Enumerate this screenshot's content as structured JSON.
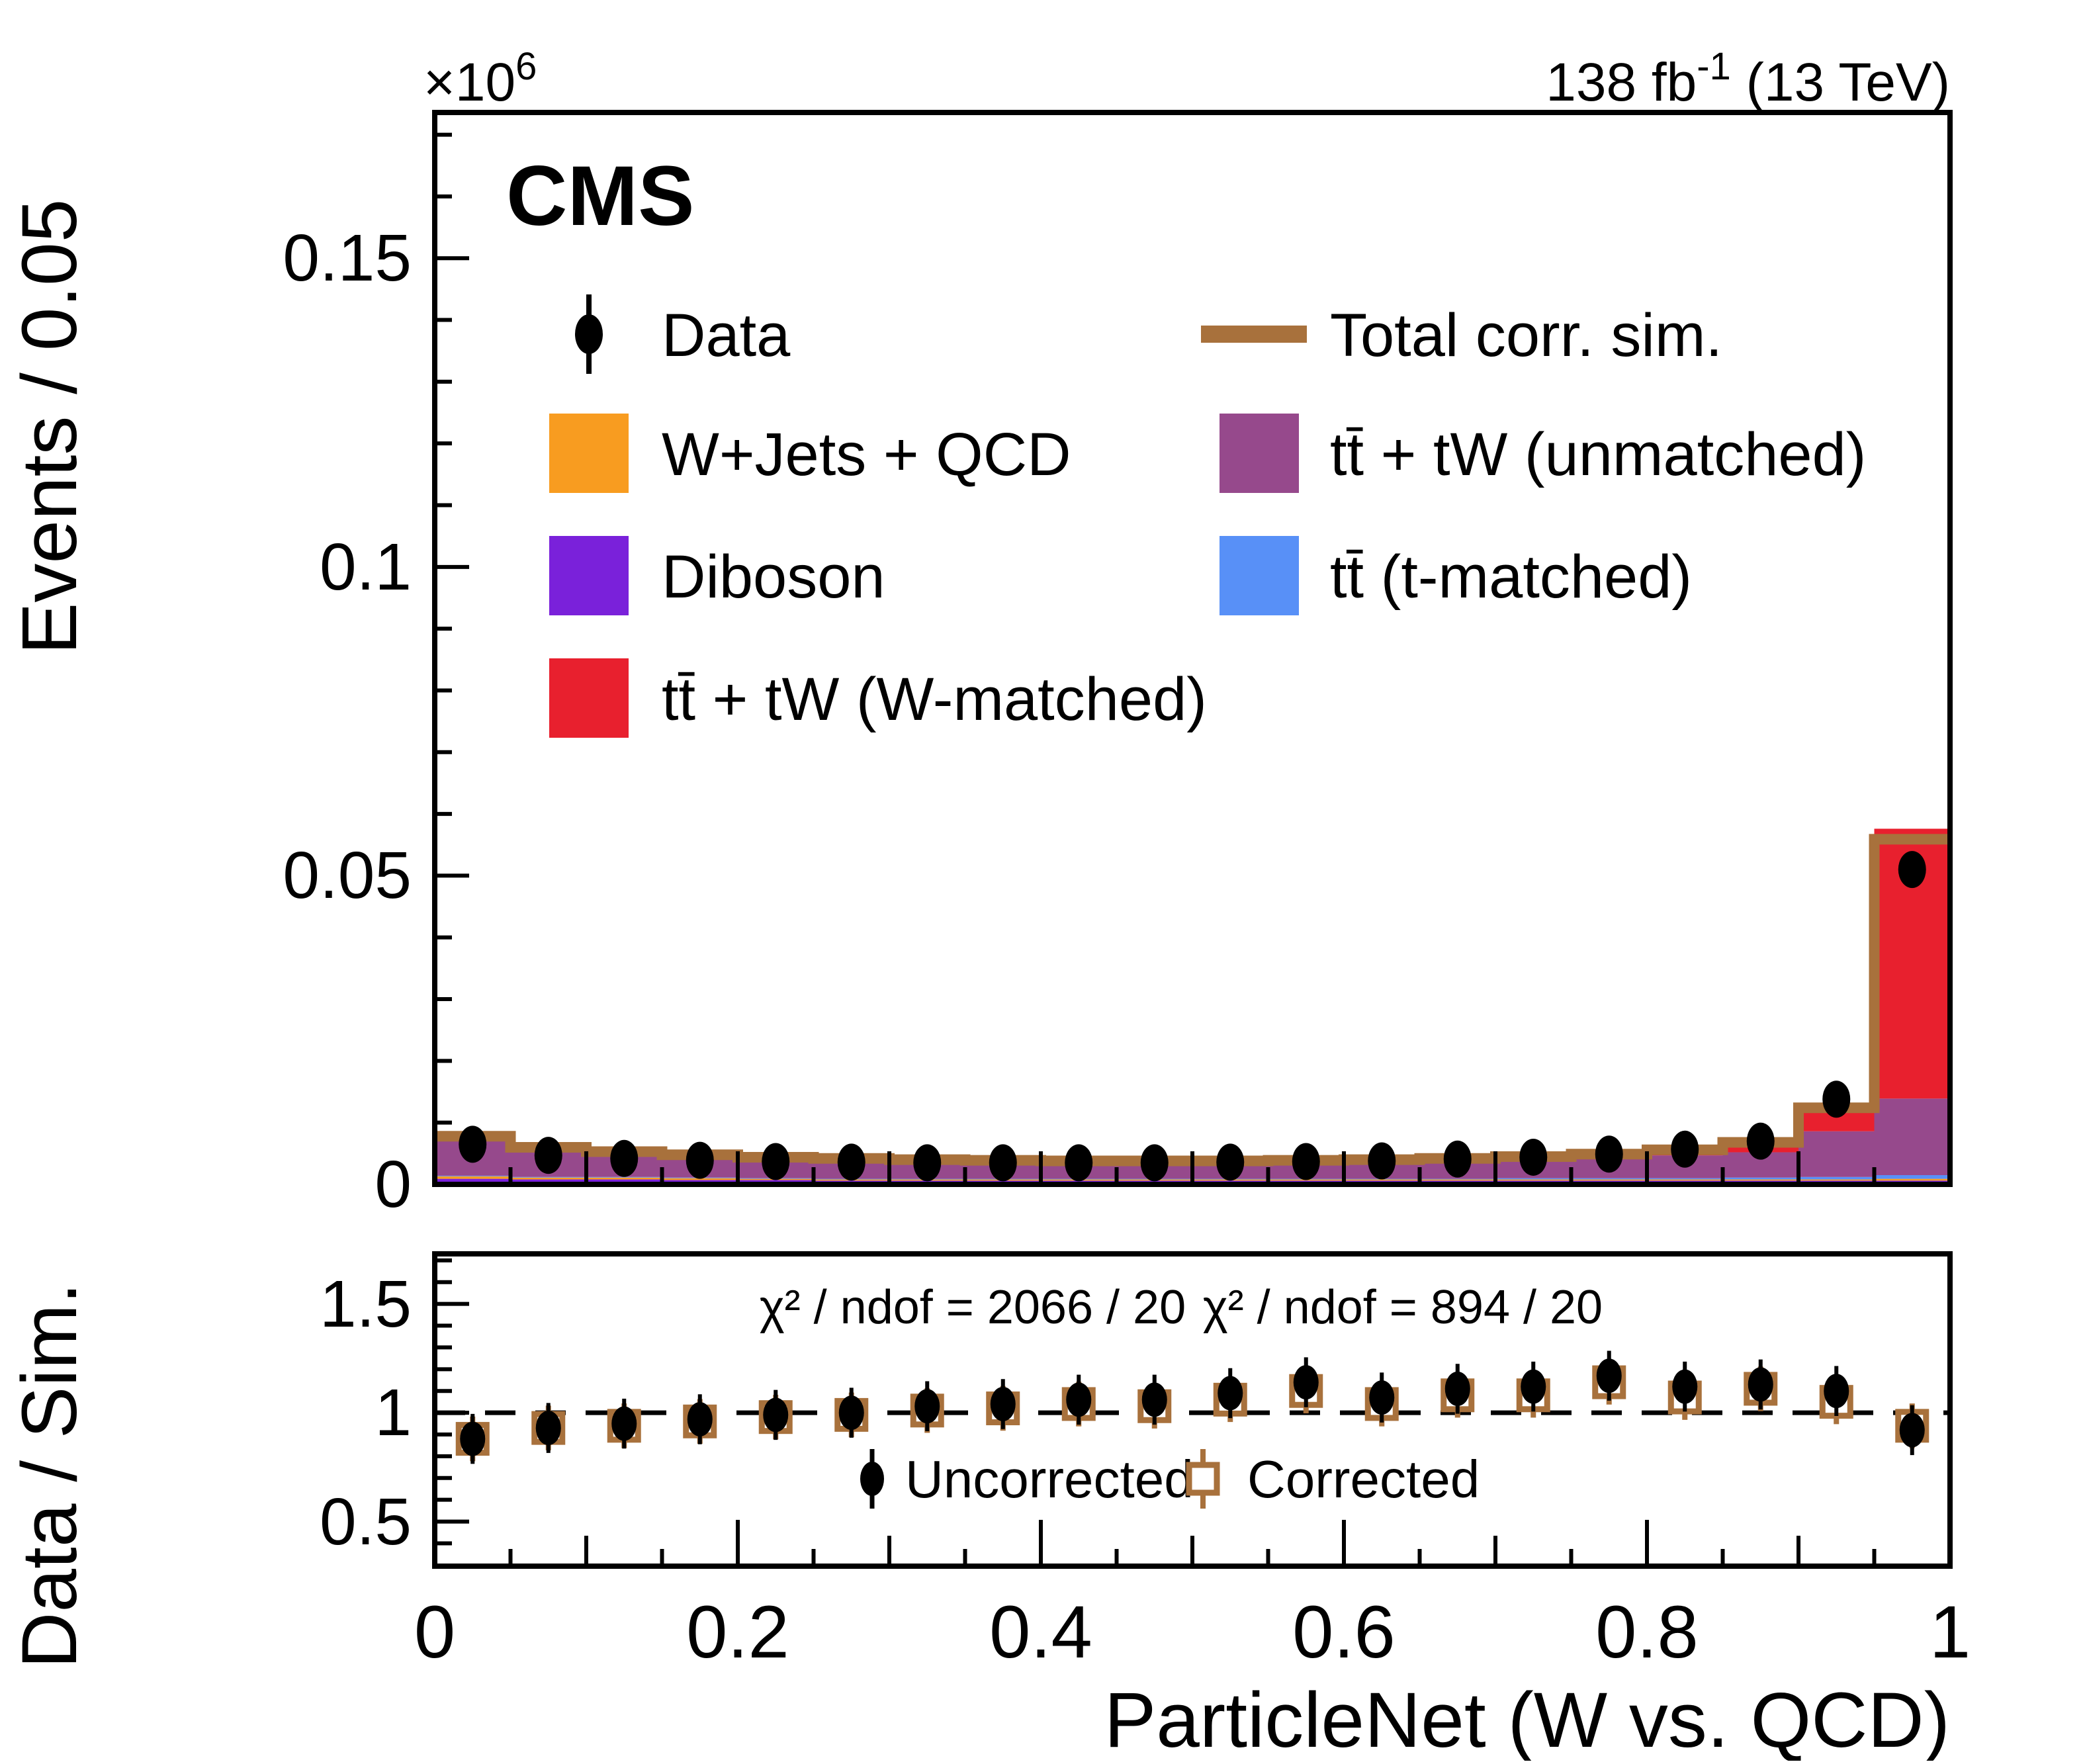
{
  "header": {
    "cms": "CMS",
    "lumi_prefix": "138 fb",
    "lumi_sup": "-1",
    "lumi_suffix": " (13 TeV)"
  },
  "main_axis": {
    "ylabel": "Events / 0.05",
    "exp_prefix": "×10",
    "exp_sup": "6",
    "yticks": [
      "0",
      "0.05",
      "0.1",
      "0.15"
    ]
  },
  "xaxis": {
    "title": "ParticleNet (W vs. QCD)",
    "ticks": [
      "0",
      "0.2",
      "0.4",
      "0.6",
      "0.8",
      "1"
    ]
  },
  "legend": {
    "data": "Data",
    "wjets": "W+Jets + QCD",
    "diboson": "Diboson",
    "wmatched": "tt̄ + tW (W-matched)",
    "total_corr": "Total corr. sim.",
    "unmatched": "tt̄ + tW (unmatched)",
    "tmatched": "tt̄ (t-matched)"
  },
  "ratio_panel": {
    "ylabel": "Data / Sim.",
    "yticks": [
      "0.5",
      "1",
      "1.5"
    ],
    "chi2_uncorrected": "χ² / ndof = 2066 / 20",
    "chi2_corrected": "χ² / ndof = 894 / 20",
    "legend_uncorrected": "Uncorrected",
    "legend_corrected": "Corrected"
  },
  "colors": {
    "wjets": "#F89C20",
    "diboson": "#7A21DA",
    "wmatched": "#E8202E",
    "unmatched": "#96498C",
    "tmatched": "#5890F7",
    "total_corr": "#A8713C",
    "data": "#000000"
  },
  "chart_data": {
    "type": "bar",
    "stacked": true,
    "title": "CMS, 138 fb-1 (13 TeV)",
    "xlabel": "ParticleNet (W vs. QCD)",
    "ylabel": "Events / 0.05 (×10⁶)",
    "n_bins": 20,
    "bin_width": 0.05,
    "x_range": [
      0,
      1
    ],
    "ylim": [
      0,
      0.1736
    ],
    "ratio_ylim": [
      0.295,
      1.73
    ],
    "legend_position": "top-inside",
    "grid": false,
    "series": [
      {
        "name": "Diboson",
        "color_key": "diboson",
        "values": [
          0.0009,
          0.0008,
          0.0008,
          0.0007,
          0.0007,
          0.0006,
          0.0006,
          0.0006,
          0.0006,
          0.0006,
          0.0006,
          0.0006,
          0.0006,
          0.0006,
          0.0006,
          0.0006,
          0.0006,
          0.0006,
          0.0006,
          0.0006
        ]
      },
      {
        "name": "W+Jets + QCD",
        "color_key": "wjets",
        "values": [
          0.0004,
          0.0003,
          0.0003,
          0.0003,
          0.0002,
          0.0002,
          0.0002,
          0.0002,
          0.0002,
          0.0002,
          0.0002,
          0.0002,
          0.0002,
          0.0002,
          0.0002,
          0.0002,
          0.0002,
          0.0002,
          0.0002,
          0.0003
        ]
      },
      {
        "name": "tt̄ (t-matched)",
        "color_key": "tmatched",
        "values": [
          0.0001,
          0.0001,
          0.0001,
          0.0001,
          0.0001,
          0.0001,
          0.0001,
          0.0001,
          0.0001,
          0.0001,
          0.0001,
          0.0001,
          0.0001,
          0.0001,
          0.0002,
          0.0002,
          0.0002,
          0.0003,
          0.0004,
          0.0006
        ]
      },
      {
        "name": "tt̄ + tW (unmatched)",
        "color_key": "unmatched",
        "values": [
          0.0063,
          0.0047,
          0.004,
          0.0036,
          0.0033,
          0.0032,
          0.003,
          0.0029,
          0.0028,
          0.0028,
          0.0028,
          0.0028,
          0.0029,
          0.003,
          0.0031,
          0.0033,
          0.0037,
          0.0041,
          0.0074,
          0.0124
        ]
      },
      {
        "name": "tt̄ + tW (W-matched)",
        "color_key": "wmatched",
        "values": [
          0.0001,
          0.0001,
          0.0001,
          0.0001,
          0.0001,
          0.0001,
          0.0001,
          0.0001,
          0.0001,
          0.0001,
          0.0001,
          0.0002,
          0.0002,
          0.0003,
          0.0004,
          0.0006,
          0.0009,
          0.0016,
          0.0045,
          0.0437
        ]
      }
    ],
    "total_corrected_sim": {
      "name": "Total corr. sim.",
      "color_key": "total_corr",
      "values": [
        0.0078,
        0.006,
        0.0053,
        0.0048,
        0.0044,
        0.0042,
        0.004,
        0.0039,
        0.0038,
        0.0038,
        0.0038,
        0.0039,
        0.004,
        0.0042,
        0.0045,
        0.0049,
        0.0056,
        0.0068,
        0.0124,
        0.0559
      ]
    },
    "data_points": {
      "name": "Data",
      "values": [
        0.0065,
        0.0047,
        0.0042,
        0.0039,
        0.0037,
        0.0036,
        0.0035,
        0.0035,
        0.0035,
        0.0035,
        0.0036,
        0.0037,
        0.0038,
        0.0041,
        0.0044,
        0.0049,
        0.0057,
        0.007,
        0.0138,
        0.051
      ],
      "y_error": 0.00025
    },
    "ratio": {
      "ref_line": 1,
      "uncorrected": [
        0.88,
        0.93,
        0.95,
        0.97,
        0.99,
        1.0,
        1.03,
        1.04,
        1.06,
        1.06,
        1.09,
        1.14,
        1.07,
        1.11,
        1.12,
        1.17,
        1.12,
        1.13,
        1.1,
        0.92
      ],
      "corrected": [
        0.88,
        0.93,
        0.94,
        0.96,
        0.98,
        0.99,
        1.01,
        1.02,
        1.04,
        1.03,
        1.06,
        1.1,
        1.04,
        1.08,
        1.08,
        1.14,
        1.07,
        1.11,
        1.05,
        0.94
      ],
      "y_error": 0.06
    }
  }
}
